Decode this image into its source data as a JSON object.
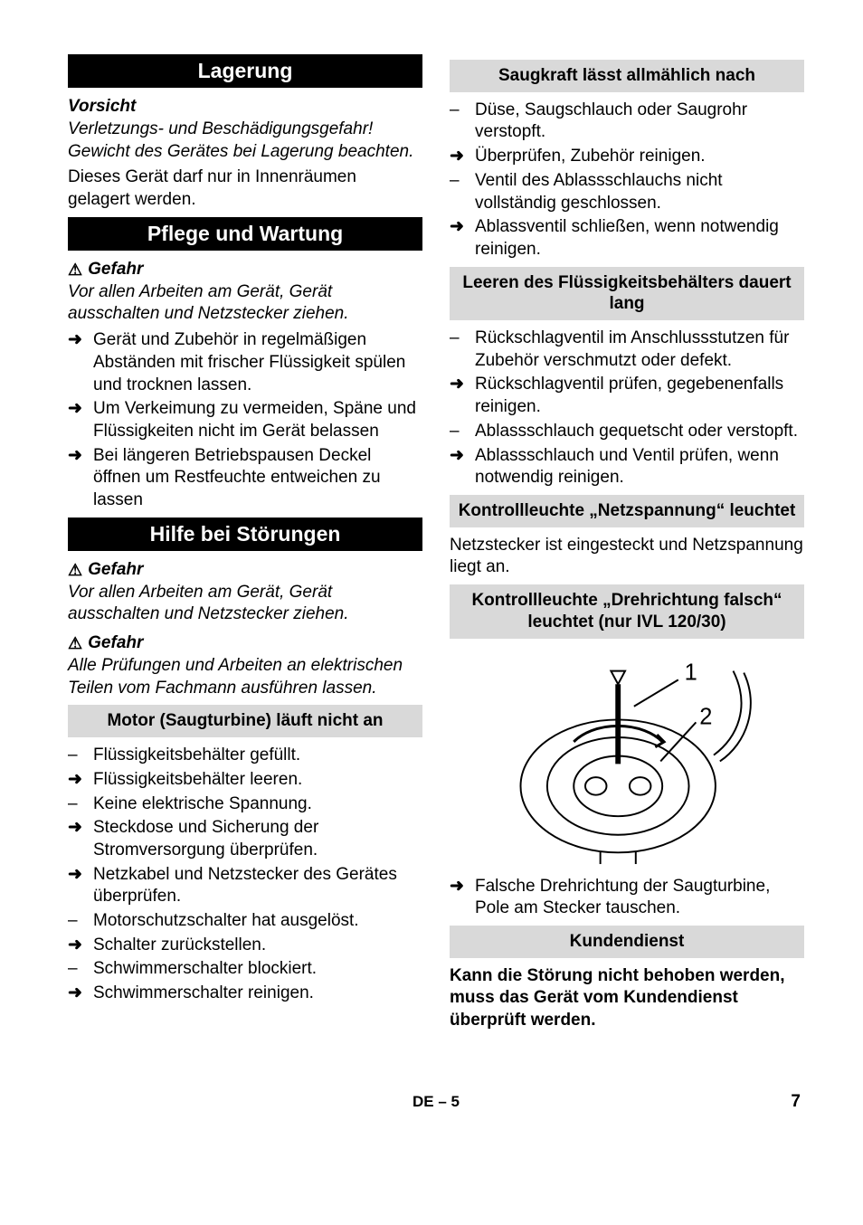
{
  "left": {
    "h_lagerung": "Lagerung",
    "caution": "Vorsicht",
    "caution_body": "Verletzungs- und Beschädigungsgefahr! Gewicht des Gerätes bei Lagerung beachten.",
    "para_indoor": "Dieses Gerät darf nur in Innenräumen gelagert werden.",
    "h_pflege": "Pflege und Wartung",
    "danger1": "Gefahr",
    "danger1_body": "Vor allen Arbeiten am Gerät, Gerät ausschalten und Netzstecker ziehen.",
    "pflege_items": [
      {
        "m": "arrow",
        "t": "Gerät und Zubehör in regelmäßigen Abständen mit frischer Flüssigkeit spülen und trocknen lassen."
      },
      {
        "m": "arrow",
        "t": "Um Verkeimung zu vermeiden, Späne und Flüssigkeiten nicht im Gerät belassen"
      },
      {
        "m": "arrow",
        "t": "Bei längeren Betriebspausen Deckel öffnen um Restfeuchte entweichen zu lassen"
      }
    ],
    "h_hilfe": "Hilfe bei Störungen",
    "danger2": "Gefahr",
    "danger2_body": "Vor allen Arbeiten am Gerät, Gerät ausschalten und Netzstecker ziehen.",
    "danger3": "Gefahr",
    "danger3_body": "Alle Prüfungen und Arbeiten an elektrischen Teilen vom Fachmann ausführen lassen.",
    "sub_motor": "Motor (Saugturbine) läuft nicht an",
    "motor_items": [
      {
        "m": "dash",
        "t": "Flüssigkeitsbehälter gefüllt."
      },
      {
        "m": "arrow",
        "t": "Flüssigkeitsbehälter leeren."
      },
      {
        "m": "dash",
        "t": "Keine elektrische Spannung."
      },
      {
        "m": "arrow",
        "t": "Steckdose und Sicherung der Stromversorgung überprüfen."
      },
      {
        "m": "arrow",
        "t": "Netzkabel und Netzstecker des Gerätes überprüfen."
      },
      {
        "m": "dash",
        "t": "Motorschutzschalter hat ausgelöst."
      },
      {
        "m": "arrow",
        "t": "Schalter zurückstellen."
      },
      {
        "m": "dash",
        "t": "Schwimmerschalter blockiert."
      },
      {
        "m": "arrow",
        "t": "Schwimmerschalter reinigen."
      }
    ]
  },
  "right": {
    "sub_saugkraft": "Saugkraft lässt allmählich nach",
    "saugkraft_items": [
      {
        "m": "dash",
        "t": "Düse, Saugschlauch oder Saugrohr verstopft."
      },
      {
        "m": "arrow",
        "t": "Überprüfen, Zubehör reinigen."
      },
      {
        "m": "dash",
        "t": "Ventil des Ablassschlauchs nicht vollständig geschlossen."
      },
      {
        "m": "arrow",
        "t": "Ablassventil schließen, wenn notwendig reinigen."
      }
    ],
    "sub_leeren": "Leeren des Flüssigkeitsbehälters dauert lang",
    "leeren_items": [
      {
        "m": "dash",
        "t": "Rückschlagventil im Anschlussstutzen für Zubehör verschmutzt oder defekt."
      },
      {
        "m": "arrow",
        "t": "Rückschlagventil prüfen, gegebenenfalls reinigen."
      },
      {
        "m": "dash",
        "t": "Ablassschlauch gequetscht oder verstopft."
      },
      {
        "m": "arrow",
        "t": "Ablassschlauch und Ventil prüfen, wenn notwendig reinigen."
      }
    ],
    "sub_netzspannung": "Kontrollleuchte „Netzspannung“ leuchtet",
    "netz_para": "Netzstecker ist eingesteckt und Netzspannung liegt an.",
    "sub_drehrichtung": "Kontrollleuchte „Drehrichtung falsch“ leuchtet (nur IVL 120/30)",
    "diagram": {
      "label1": "1",
      "label2": "2"
    },
    "dreh_items": [
      {
        "m": "arrow",
        "t": "Falsche Drehrichtung der Saugturbine, Pole am Stecker tauschen."
      }
    ],
    "sub_kundendienst": "Kundendienst",
    "kund_para": "Kann die Störung nicht behoben werden, muss das Gerät vom Kundendienst überprüft werden."
  },
  "footer": {
    "lang": "DE",
    "sep": "–",
    "pg_inner": "5",
    "pg_outer": "7"
  },
  "glyphs": {
    "arrow": "➜",
    "dash": "–",
    "triangle": "⚠"
  }
}
